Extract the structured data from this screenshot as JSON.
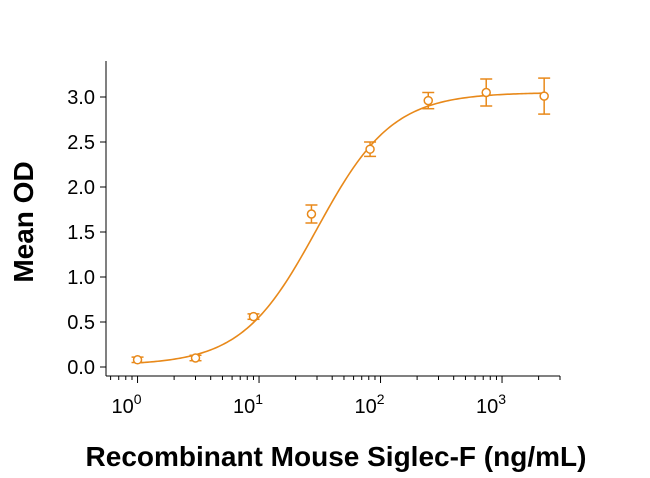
{
  "chart_data": {
    "type": "scatter",
    "xlabel": "Recombinant Mouse Siglec-F (ng/mL)",
    "ylabel": "Mean OD",
    "x_scale": "log",
    "xlim": [
      0.55,
      3000
    ],
    "ylim": [
      -0.1,
      3.4
    ],
    "x_ticks": [
      {
        "value": 1,
        "base": "10",
        "exp": "0"
      },
      {
        "value": 10,
        "base": "10",
        "exp": "1"
      },
      {
        "value": 100,
        "base": "10",
        "exp": "2"
      },
      {
        "value": 1000,
        "base": "10",
        "exp": "3"
      }
    ],
    "y_ticks": [
      {
        "value": 0.0,
        "label": "0.0"
      },
      {
        "value": 0.5,
        "label": "0.5"
      },
      {
        "value": 1.0,
        "label": "1.0"
      },
      {
        "value": 1.5,
        "label": "1.5"
      },
      {
        "value": 2.0,
        "label": "2.0"
      },
      {
        "value": 2.5,
        "label": "2.5"
      },
      {
        "value": 3.0,
        "label": "3.0"
      }
    ],
    "grid": false,
    "color": "#E8891A",
    "series": [
      {
        "points": [
          {
            "x": 1.0,
            "y": 0.08,
            "err": 0.03
          },
          {
            "x": 3.0,
            "y": 0.1,
            "err": 0.03
          },
          {
            "x": 9.0,
            "y": 0.56,
            "err": 0.03
          },
          {
            "x": 27.0,
            "y": 1.7,
            "err": 0.1
          },
          {
            "x": 82.0,
            "y": 2.42,
            "err": 0.08
          },
          {
            "x": 247.0,
            "y": 2.96,
            "err": 0.09
          },
          {
            "x": 741.0,
            "y": 3.05,
            "err": 0.15
          },
          {
            "x": 2222.0,
            "y": 3.01,
            "err": 0.2
          }
        ],
        "fit": {
          "model": "4PL",
          "bottom": 0.02,
          "top": 3.05,
          "ec50": 30,
          "hill": 1.4
        }
      }
    ]
  }
}
